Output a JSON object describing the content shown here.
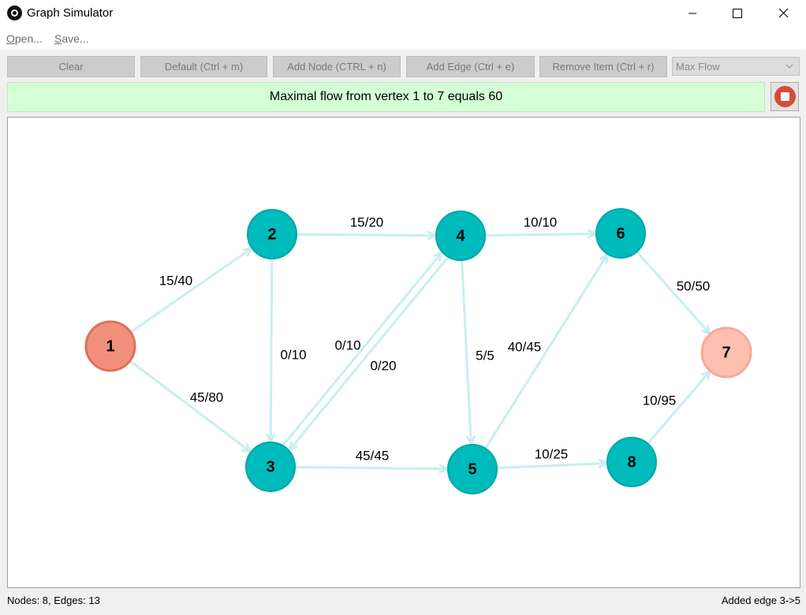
{
  "window": {
    "title": "Graph Simulator",
    "controls": {
      "minimize": "minimize-icon",
      "maximize": "maximize-icon",
      "close": "close-icon"
    }
  },
  "menu": {
    "open": {
      "first": "O",
      "rest": "pen..."
    },
    "save": {
      "first": "S",
      "rest": "ave..."
    }
  },
  "toolbar": {
    "clear": "Clear",
    "default": "Default (Ctrl + m)",
    "add_node": "Add Node (CTRL + n)",
    "add_edge": "Add Edge (Ctrl + e)",
    "remove_item": "Remove Item (Ctrl + r)",
    "algorithm_selected": "Max Flow"
  },
  "banner": {
    "message": "Maximal flow from vertex 1 to 7 equals 60",
    "stop_icon": "stop-icon"
  },
  "graph": {
    "colors": {
      "default_node": "#00bbbb",
      "source_node": "#f0907a",
      "sink_node": "#fdbfb0",
      "edge": "#c9eef0"
    },
    "nodes": [
      {
        "id": "1",
        "role": "source"
      },
      {
        "id": "2",
        "role": "default"
      },
      {
        "id": "3",
        "role": "default"
      },
      {
        "id": "4",
        "role": "default"
      },
      {
        "id": "5",
        "role": "default"
      },
      {
        "id": "6",
        "role": "default"
      },
      {
        "id": "7",
        "role": "sink"
      },
      {
        "id": "8",
        "role": "default"
      }
    ],
    "edges": [
      {
        "from": "1",
        "to": "2",
        "label": "15/40"
      },
      {
        "from": "1",
        "to": "3",
        "label": "45/80"
      },
      {
        "from": "2",
        "to": "4",
        "label": "15/20"
      },
      {
        "from": "2",
        "to": "3",
        "label": "0/10"
      },
      {
        "from": "3",
        "to": "4",
        "label": "0/10"
      },
      {
        "from": "4",
        "to": "3",
        "label": "0/20"
      },
      {
        "from": "3",
        "to": "5",
        "label": "45/45"
      },
      {
        "from": "4",
        "to": "6",
        "label": "10/10"
      },
      {
        "from": "4",
        "to": "5",
        "label": "5/5"
      },
      {
        "from": "5",
        "to": "6",
        "label": "40/45"
      },
      {
        "from": "5",
        "to": "8",
        "label": "10/25"
      },
      {
        "from": "6",
        "to": "7",
        "label": "50/50"
      },
      {
        "from": "8",
        "to": "7",
        "label": "10/95"
      }
    ]
  },
  "status": {
    "left": "Nodes: 8, Edges: 13",
    "right": "Added edge 3->5"
  }
}
